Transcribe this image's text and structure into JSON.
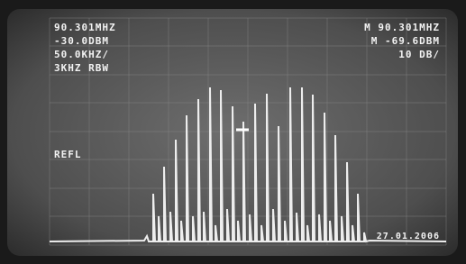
{
  "screen": {
    "top_left": [
      "90.301MHZ",
      "-30.0DBM",
      "50.0KHZ/",
      "3KHZ RBW"
    ],
    "top_right": [
      "M 90.301MHZ",
      "M -69.6DBM",
      "10 DB/"
    ],
    "marker_label": "REFL",
    "date_stamp": "27.01.2006"
  }
}
